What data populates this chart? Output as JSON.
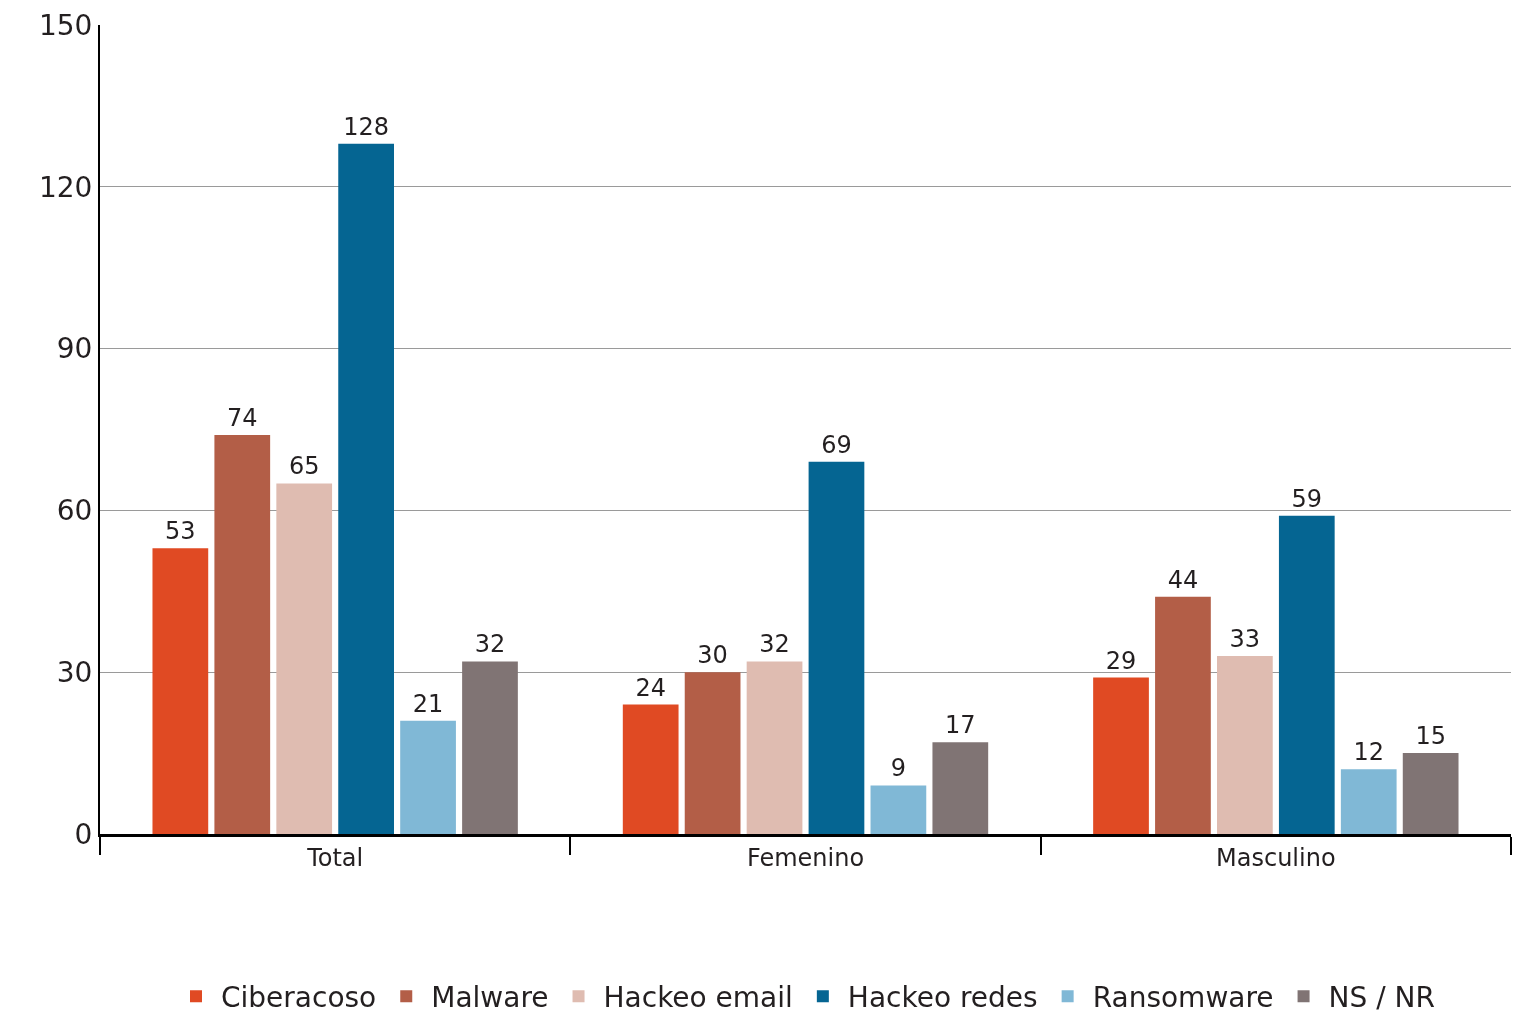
{
  "chart_data": {
    "type": "bar",
    "categories": [
      "Total",
      "Femenino",
      "Masculino"
    ],
    "series": [
      {
        "name": "Ciberacoso",
        "color": "#e04a23",
        "values": [
          53,
          24,
          29
        ]
      },
      {
        "name": "Malware",
        "color": "#b35e47",
        "values": [
          74,
          30,
          44
        ]
      },
      {
        "name": "Hackeo email",
        "color": "#dfbcb1",
        "values": [
          65,
          32,
          33
        ]
      },
      {
        "name": "Hackeo redes",
        "color": "#056592",
        "values": [
          128,
          69,
          59
        ]
      },
      {
        "name": "Ransomware",
        "color": "#80b8d6",
        "values": [
          21,
          9,
          12
        ]
      },
      {
        "name": "NS / NR",
        "color": "#807474",
        "values": [
          32,
          17,
          15
        ]
      }
    ],
    "ylim": [
      0,
      150
    ],
    "yticks": [
      0,
      30,
      60,
      90,
      120,
      150
    ],
    "grid": "y",
    "legend": "bottom",
    "data_labels": true
  }
}
